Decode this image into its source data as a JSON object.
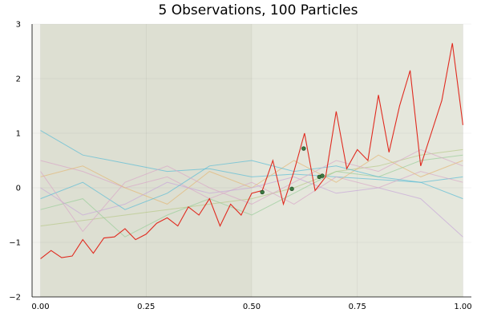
{
  "chart_data": {
    "type": "line",
    "title": "5 Observations, 100 Particles",
    "xlabel": "",
    "ylabel": "",
    "xlim": [
      -0.02,
      1.02
    ],
    "ylim": [
      -2,
      3
    ],
    "xticks": [
      0.0,
      0.25,
      0.5,
      0.75,
      1.0
    ],
    "xtick_labels": [
      "0.00",
      "0.25",
      "0.50",
      "0.75",
      "1.00"
    ],
    "yticks": [
      -2,
      -1,
      0,
      1,
      2,
      3
    ],
    "ytick_labels": [
      "−2",
      "−1",
      "0",
      "1",
      "2",
      "3"
    ],
    "grid": true,
    "legend": "none",
    "colors": {
      "true_path": "#e02a1f",
      "observation": "#3a7a40",
      "band": "#cfd4bf",
      "particles": [
        "#5bbcd6",
        "#d9a8c7",
        "#b8c98a",
        "#e3b877",
        "#9acd9a",
        "#c7a7d9"
      ]
    },
    "true_path": {
      "x": [
        0.0,
        0.025,
        0.05,
        0.075,
        0.1,
        0.125,
        0.15,
        0.175,
        0.2,
        0.225,
        0.25,
        0.275,
        0.3,
        0.325,
        0.35,
        0.375,
        0.4,
        0.425,
        0.45,
        0.475,
        0.5,
        0.525,
        0.55,
        0.575,
        0.6,
        0.625,
        0.65,
        0.675,
        0.7,
        0.725,
        0.75,
        0.775,
        0.8,
        0.825,
        0.85,
        0.875,
        0.9,
        0.925,
        0.95,
        0.975,
        1.0
      ],
      "y": [
        -1.3,
        -1.15,
        -1.28,
        -1.25,
        -0.95,
        -1.2,
        -0.92,
        -0.9,
        -0.75,
        -0.95,
        -0.85,
        -0.65,
        -0.55,
        -0.7,
        -0.35,
        -0.5,
        -0.2,
        -0.7,
        -0.3,
        -0.5,
        -0.1,
        -0.05,
        0.5,
        -0.3,
        0.3,
        1.0,
        -0.05,
        0.2,
        1.4,
        0.35,
        0.7,
        0.5,
        1.7,
        0.65,
        1.5,
        2.15,
        0.4,
        1.0,
        1.6,
        2.65,
        1.15
      ]
    },
    "observations": {
      "x": [
        0.525,
        0.595,
        0.623,
        0.66,
        0.667
      ],
      "y": [
        -0.08,
        -0.02,
        0.72,
        0.2,
        0.22
      ]
    },
    "band": {
      "x": [
        0.0,
        0.25,
        0.5,
        0.75,
        1.0
      ],
      "upper": [
        3.0,
        3.0,
        3.0,
        3.0,
        3.0
      ],
      "lower": [
        -2.0,
        -2.0,
        -2.0,
        -2.0,
        -2.0
      ]
    },
    "particles": {
      "x": [
        0.0,
        0.1,
        0.2,
        0.3,
        0.4,
        0.5,
        0.6,
        0.7,
        0.8,
        0.9,
        1.0
      ],
      "series": [
        {
          "values": [
            1.05,
            0.6,
            0.45,
            0.3,
            0.35,
            0.2,
            0.25,
            0.2,
            0.15,
            0.1,
            0.2
          ]
        },
        {
          "values": [
            0.5,
            0.3,
            0.0,
            0.2,
            -0.2,
            0.1,
            -0.3,
            0.2,
            0.0,
            0.3,
            0.1
          ]
        },
        {
          "values": [
            -0.7,
            -0.6,
            -0.5,
            -0.4,
            -0.3,
            -0.2,
            0.0,
            0.3,
            0.4,
            0.6,
            0.7
          ]
        },
        {
          "values": [
            0.2,
            0.4,
            0.0,
            -0.3,
            0.3,
            0.0,
            0.5,
            0.1,
            0.6,
            0.2,
            0.5
          ]
        },
        {
          "values": [
            -0.4,
            -0.2,
            -0.9,
            -0.5,
            -0.2,
            -0.5,
            -0.1,
            0.3,
            0.2,
            0.5,
            0.6
          ]
        },
        {
          "values": [
            0.0,
            -0.5,
            -0.3,
            0.1,
            -0.1,
            0.0,
            0.2,
            -0.1,
            0.0,
            -0.2,
            -0.9
          ]
        },
        {
          "values": [
            -0.2,
            0.1,
            -0.4,
            -0.1,
            0.4,
            0.5,
            0.3,
            0.4,
            0.2,
            0.1,
            -0.2
          ]
        },
        {
          "values": [
            0.3,
            -0.8,
            0.1,
            0.4,
            0.0,
            -0.3,
            0.1,
            0.5,
            0.3,
            0.7,
            0.4
          ]
        }
      ]
    }
  }
}
